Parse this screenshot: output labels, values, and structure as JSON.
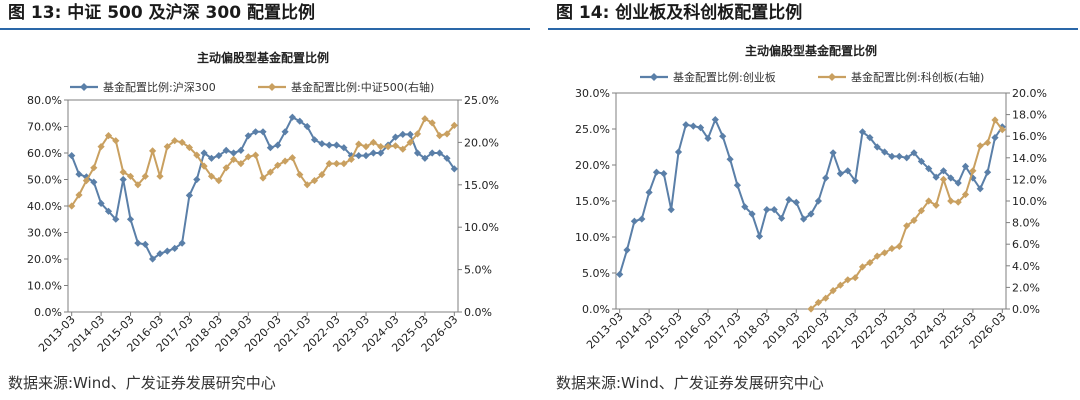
{
  "left": {
    "figure_title": "图 13:  中证 500 及沪深 300 配置比例",
    "source": "数据来源:Wind、广发证券发展研究中心"
  },
  "right": {
    "figure_title": "图 14:  创业板及科创板配置比例",
    "source": "数据来源:Wind、广发证券发展研究中心"
  },
  "colors": {
    "series_a": "#5a7fa8",
    "series_b": "#c9a060",
    "rule": "#2a67a8"
  },
  "chart_data": [
    {
      "type": "line",
      "title": "主动偏股型基金配置比例",
      "legend_position": "top",
      "x_ticks": [
        "2013-03",
        "2014-03",
        "2015-03",
        "2016-03",
        "2017-03",
        "2018-03",
        "2019-03",
        "2020-03",
        "2021-03",
        "2022-03",
        "2023-03",
        "2024-03",
        "2025-03",
        "2026-03"
      ],
      "x": [
        "2013-03",
        "2013-06",
        "2013-09",
        "2013-12",
        "2014-03",
        "2014-06",
        "2014-09",
        "2014-12",
        "2015-03",
        "2015-06",
        "2015-09",
        "2015-12",
        "2016-03",
        "2016-06",
        "2016-09",
        "2016-12",
        "2017-03",
        "2017-06",
        "2017-09",
        "2017-12",
        "2018-03",
        "2018-06",
        "2018-09",
        "2018-12",
        "2019-03",
        "2019-06",
        "2019-09",
        "2019-12",
        "2020-03",
        "2020-06",
        "2020-09",
        "2020-12",
        "2021-03",
        "2021-06",
        "2021-09",
        "2021-12",
        "2022-03",
        "2022-06",
        "2022-09",
        "2022-12",
        "2023-03",
        "2023-06",
        "2023-09",
        "2023-12",
        "2024-03",
        "2024-06",
        "2024-09",
        "2024-12",
        "2025-03",
        "2025-06",
        "2025-09",
        "2025-12",
        "2026-03"
      ],
      "y_left": {
        "ticks": [
          "0.0%",
          "10.0%",
          "20.0%",
          "30.0%",
          "40.0%",
          "50.0%",
          "60.0%",
          "70.0%",
          "80.0%"
        ],
        "min": 0,
        "max": 80
      },
      "y_right": {
        "ticks": [
          "0.0%",
          "5.0%",
          "10.0%",
          "15.0%",
          "20.0%",
          "25.0%"
        ],
        "min": 0,
        "max": 25
      },
      "series": [
        {
          "name": "基金配置比例:沪深300",
          "axis": "left",
          "values": [
            59,
            52,
            51,
            49,
            41,
            38,
            35,
            50,
            35,
            26,
            25.5,
            20,
            22,
            23,
            24,
            26,
            44,
            50,
            60,
            58,
            59,
            61,
            60,
            61,
            66.5,
            68,
            68,
            62,
            63,
            68,
            73.5,
            72,
            70,
            65,
            63.5,
            63,
            63,
            62,
            59,
            59,
            59,
            60,
            60,
            63,
            66,
            67,
            67,
            60,
            58,
            60,
            60,
            58,
            54
          ]
        },
        {
          "name": "基金配置比例:中证500(右轴)",
          "axis": "right",
          "values": [
            12.5,
            13.8,
            15.5,
            17,
            19.5,
            20.8,
            20.2,
            16.5,
            16,
            15,
            16,
            19,
            16,
            19.5,
            20.2,
            20,
            19.4,
            18.5,
            17.2,
            16,
            15.5,
            17,
            18,
            17.5,
            18.3,
            18.5,
            15.8,
            16.5,
            17.3,
            17.8,
            18.2,
            16.2,
            15,
            15.5,
            16.2,
            17.5,
            17.5,
            17.5,
            18,
            19.8,
            19.5,
            20,
            19.5,
            19.5,
            19.6,
            19.2,
            20,
            21,
            22.8,
            22.3,
            20.8,
            21,
            22
          ]
        }
      ]
    },
    {
      "type": "line",
      "title": "主动偏股型基金配置比例",
      "legend_position": "top",
      "x_ticks": [
        "2013-03",
        "2014-03",
        "2015-03",
        "2016-03",
        "2017-03",
        "2018-03",
        "2019-03",
        "2020-03",
        "2021-03",
        "2022-03",
        "2023-03",
        "2024-03",
        "2025-03",
        "2026-03"
      ],
      "x": [
        "2013-03",
        "2013-06",
        "2013-09",
        "2013-12",
        "2014-03",
        "2014-06",
        "2014-09",
        "2014-12",
        "2015-03",
        "2015-06",
        "2015-09",
        "2015-12",
        "2016-03",
        "2016-06",
        "2016-09",
        "2016-12",
        "2017-03",
        "2017-06",
        "2017-09",
        "2017-12",
        "2018-03",
        "2018-06",
        "2018-09",
        "2018-12",
        "2019-03",
        "2019-06",
        "2019-09",
        "2019-12",
        "2020-03",
        "2020-06",
        "2020-09",
        "2020-12",
        "2021-03",
        "2021-06",
        "2021-09",
        "2021-12",
        "2022-03",
        "2022-06",
        "2022-09",
        "2022-12",
        "2023-03",
        "2023-06",
        "2023-09",
        "2023-12",
        "2024-03",
        "2024-06",
        "2024-09",
        "2024-12",
        "2025-03",
        "2025-06",
        "2025-09",
        "2025-12",
        "2026-03"
      ],
      "y_left": {
        "ticks": [
          "0.0%",
          "5.0%",
          "10.0%",
          "15.0%",
          "20.0%",
          "25.0%",
          "30.0%"
        ],
        "min": 0,
        "max": 30
      },
      "y_right": {
        "ticks": [
          "0.0%",
          "2.0%",
          "4.0%",
          "6.0%",
          "8.0%",
          "10.0%",
          "12.0%",
          "14.0%",
          "16.0%",
          "18.0%",
          "20.0%"
        ],
        "min": 0,
        "max": 20
      },
      "series": [
        {
          "name": "基金配置比例:创业板",
          "axis": "left",
          "values": [
            4.8,
            8.2,
            12.2,
            12.5,
            16.2,
            19,
            18.8,
            13.8,
            21.8,
            25.6,
            25.4,
            25.2,
            23.7,
            26.3,
            24,
            20.8,
            17.2,
            14.2,
            13.2,
            10.1,
            13.8,
            13.8,
            12.6,
            15.2,
            14.8,
            12.5,
            13.2,
            15,
            18.2,
            21.7,
            18.8,
            19.2,
            17.8,
            24.6,
            23.8,
            22.5,
            21.8,
            21.2,
            21.2,
            21,
            21.7,
            20.5,
            19.5,
            18.3,
            19.2,
            18.2,
            17.5,
            19.8,
            18.2,
            16.7,
            19,
            23.8,
            25.3
          ]
        },
        {
          "name": "基金配置比例:科创板(右轴)",
          "axis": "right",
          "values": [
            null,
            null,
            null,
            null,
            null,
            null,
            null,
            null,
            null,
            null,
            null,
            null,
            null,
            null,
            null,
            null,
            null,
            null,
            null,
            null,
            null,
            null,
            null,
            null,
            null,
            null,
            0,
            0.6,
            1,
            1.7,
            2.2,
            2.7,
            2.9,
            3.9,
            4.3,
            4.9,
            5.2,
            5.6,
            5.8,
            7.7,
            8.2,
            9.1,
            10,
            9.6,
            12,
            10,
            9.9,
            10.6,
            12.8,
            15.1,
            15.4,
            17.5,
            16.6
          ]
        }
      ]
    }
  ]
}
